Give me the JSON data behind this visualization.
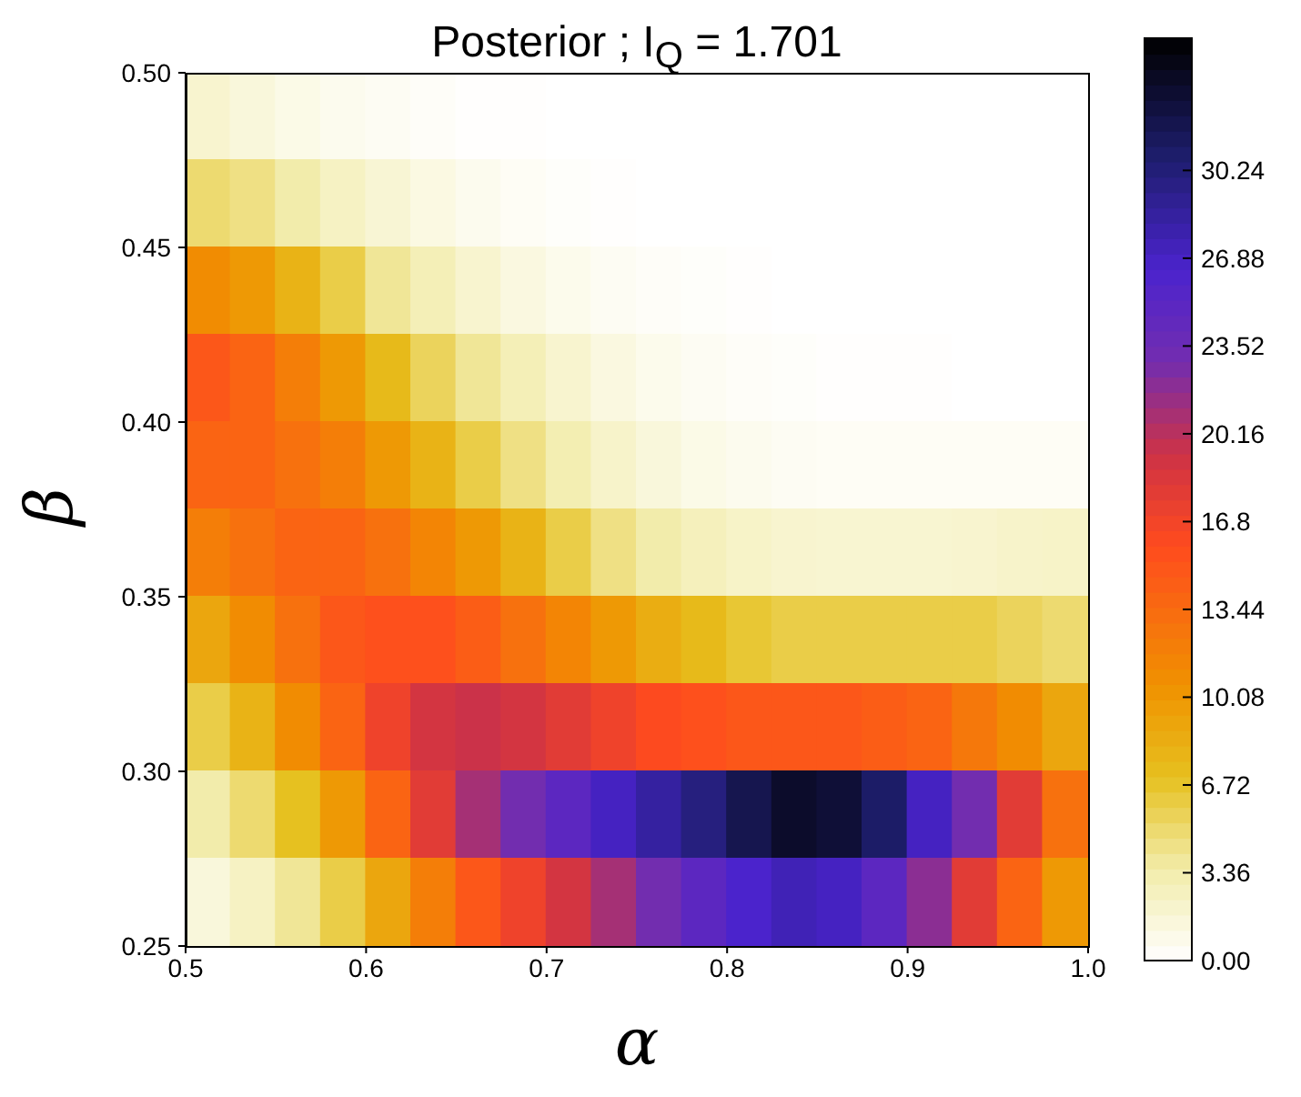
{
  "chart_data": {
    "type": "heatmap",
    "title": "Posterior ; I$_{Q}$ = 1.701",
    "xlabel": "α",
    "ylabel": "β",
    "xlim": [
      0.5,
      1.0
    ],
    "xticks": [
      {
        "value": 0.5,
        "label": "0.5"
      },
      {
        "value": 0.6,
        "label": "0.6"
      },
      {
        "value": 0.7,
        "label": "0.7"
      },
      {
        "value": 0.8,
        "label": "0.8"
      },
      {
        "value": 0.9,
        "label": "0.9"
      },
      {
        "value": 1.0,
        "label": "1.0"
      }
    ],
    "ylim": [
      0.25,
      0.5
    ],
    "yticks": [
      {
        "value": 0.25,
        "label": "0.25"
      },
      {
        "value": 0.3,
        "label": "0.30"
      },
      {
        "value": 0.35,
        "label": "0.35"
      },
      {
        "value": 0.4,
        "label": "0.40"
      },
      {
        "value": 0.45,
        "label": "0.45"
      },
      {
        "value": 0.5,
        "label": "0.50"
      }
    ],
    "clim": [
      0,
      35.3
    ],
    "cticks": [
      {
        "value": 0,
        "label": "0.00"
      },
      3.36,
      6.72,
      10.08,
      13.44,
      16.8,
      20.16,
      23.52,
      26.88,
      30.24
    ],
    "cells": [
      [
        2,
        1.5,
        1,
        0.7,
        0.5,
        0.3,
        0.1,
        0.1,
        0,
        0,
        0,
        0,
        0,
        0,
        0,
        0,
        0,
        0,
        0,
        0
      ],
      [
        5,
        4.5,
        3.5,
        2.5,
        1.8,
        1.2,
        0.7,
        0.4,
        0.2,
        0.1,
        0,
        0,
        0,
        0,
        0,
        0,
        0,
        0,
        0,
        0
      ],
      [
        11,
        10,
        8,
        6,
        4,
        3,
        2,
        1.3,
        0.8,
        0.5,
        0.3,
        0.2,
        0.1,
        0,
        0,
        0,
        0,
        0,
        0,
        0
      ],
      [
        15,
        14,
        12,
        10,
        7.5,
        5.5,
        4,
        3,
        2,
        1.3,
        0.8,
        0.5,
        0.3,
        0.2,
        0.1,
        0.1,
        0.1,
        0,
        0,
        0
      ],
      [
        14,
        14,
        13,
        12,
        10,
        8,
        6,
        4.5,
        3.2,
        2.2,
        1.5,
        1,
        0.7,
        0.5,
        0.4,
        0.4,
        0.4,
        0.4,
        0.4,
        0.4
      ],
      [
        12,
        13,
        14,
        14,
        13,
        11.5,
        10,
        8,
        6,
        4.5,
        3.5,
        2.8,
        2.3,
        2,
        1.9,
        1.9,
        1.9,
        2,
        2.2,
        2.3
      ],
      [
        9,
        11,
        13,
        15,
        15.5,
        15.5,
        14.5,
        13,
        11.5,
        10,
        8.5,
        7.5,
        6.5,
        6,
        6,
        6,
        6,
        6,
        5.5,
        5
      ],
      [
        6,
        8,
        11,
        14,
        17,
        19,
        19.5,
        19,
        18,
        17,
        16,
        15.5,
        15,
        15,
        15,
        14.5,
        14,
        12.5,
        11,
        9
      ],
      [
        3.5,
        5,
        7,
        10,
        14,
        18,
        21,
        23,
        25,
        27,
        28.5,
        30,
        32,
        33.5,
        33,
        31,
        27,
        23,
        18,
        13
      ],
      [
        1.5,
        2.5,
        4,
        6,
        9,
        12,
        15,
        17,
        19,
        21,
        23,
        25,
        26.5,
        27.5,
        27,
        25,
        22,
        18,
        14,
        10
      ]
    ]
  }
}
